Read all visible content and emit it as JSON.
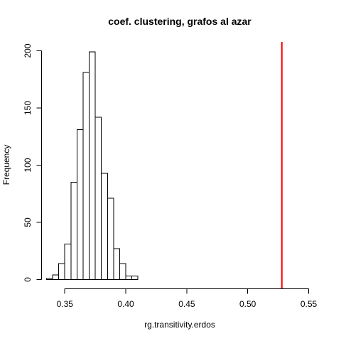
{
  "chart_data": {
    "type": "histogram",
    "title": "coef. clustering, grafos al azar",
    "xlabel": "rg.transitivity.erdos",
    "ylabel": "Frequency",
    "xlim": [
      0.335,
      0.55
    ],
    "ylim": [
      0,
      200
    ],
    "x_ticks": [
      0.35,
      0.4,
      0.45,
      0.5,
      0.55
    ],
    "x_tick_labels": [
      "0.35",
      "0.40",
      "0.45",
      "0.50",
      "0.55"
    ],
    "y_ticks": [
      0,
      50,
      100,
      150,
      200
    ],
    "y_tick_labels": [
      "0",
      "50",
      "100",
      "150",
      "200"
    ],
    "bin_width": 0.005,
    "bins": [
      {
        "start": 0.335,
        "end": 0.34,
        "count": 1
      },
      {
        "start": 0.34,
        "end": 0.345,
        "count": 4
      },
      {
        "start": 0.345,
        "end": 0.35,
        "count": 14
      },
      {
        "start": 0.35,
        "end": 0.355,
        "count": 31
      },
      {
        "start": 0.355,
        "end": 0.36,
        "count": 85
      },
      {
        "start": 0.36,
        "end": 0.365,
        "count": 131
      },
      {
        "start": 0.365,
        "end": 0.37,
        "count": 181
      },
      {
        "start": 0.37,
        "end": 0.375,
        "count": 199
      },
      {
        "start": 0.375,
        "end": 0.38,
        "count": 142
      },
      {
        "start": 0.38,
        "end": 0.385,
        "count": 93
      },
      {
        "start": 0.385,
        "end": 0.39,
        "count": 71
      },
      {
        "start": 0.39,
        "end": 0.395,
        "count": 27
      },
      {
        "start": 0.395,
        "end": 0.4,
        "count": 14
      },
      {
        "start": 0.4,
        "end": 0.405,
        "count": 3
      },
      {
        "start": 0.405,
        "end": 0.41,
        "count": 3
      }
    ],
    "reference_line": {
      "x": 0.528,
      "color": "#ff0000"
    }
  }
}
